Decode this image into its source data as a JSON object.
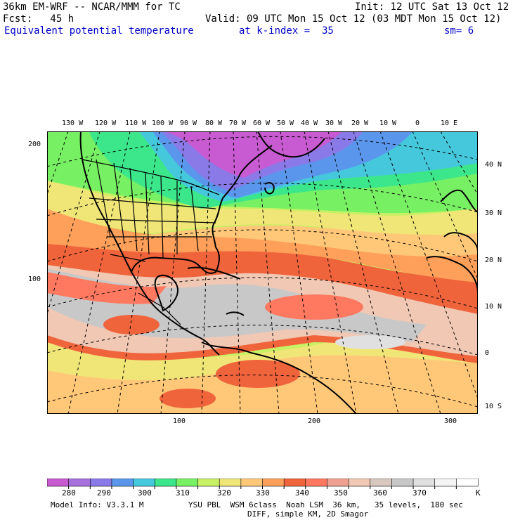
{
  "header": {
    "model_title": "36km EM-WRF -- NCAR/MMM for TC",
    "init": "Init: 12 UTC Sat 13 Oct 12",
    "fcst": "Fcst:   45 h",
    "valid": "Valid: 09 UTC Mon 15 Oct 12 (03 MDT Mon 15 Oct 12)",
    "field": "Equivalent potential temperature",
    "level": "at k-index =  35",
    "smooth": "sm= 6"
  },
  "axes": {
    "top_lon": [
      "130 W",
      "120 W",
      "110 W",
      "100 W",
      "90 W",
      "80 W",
      "70 W",
      "60 W",
      "50 W",
      "40 W",
      "30 W",
      "20 W",
      "10 W",
      "0",
      "10 E"
    ],
    "right_lat": [
      "40 N",
      "30 N",
      "20 N",
      "10 N",
      "0",
      "10 S"
    ],
    "left_grid": [
      "200",
      "100"
    ],
    "bottom_grid": [
      "100",
      "200",
      "300"
    ]
  },
  "colorbar": {
    "labels": [
      "280",
      "290",
      "300",
      "310",
      "320",
      "330",
      "340",
      "350",
      "360",
      "370"
    ],
    "unit": "K",
    "colors": [
      "#c85ad2",
      "#a870dc",
      "#8a7ae8",
      "#5a96ec",
      "#46c8dc",
      "#3ce68a",
      "#78f064",
      "#c8f064",
      "#f0e678",
      "#ffc878",
      "#ffa05a",
      "#f0643c",
      "#ff7860",
      "#f0a090",
      "#f0c8b4",
      "#d8c8c0",
      "#c8c8c8",
      "#e0e0e0",
      "#f4f4f4",
      "#ffffff"
    ]
  },
  "footer": {
    "model_info": "Model Info: V3.3.1 M",
    "physics": "YSU PBL  WSM 6class  Noah LSM  36 km,   35 levels,  180 sec",
    "diff": "DIFF, simple KM, 2D Smagor"
  }
}
